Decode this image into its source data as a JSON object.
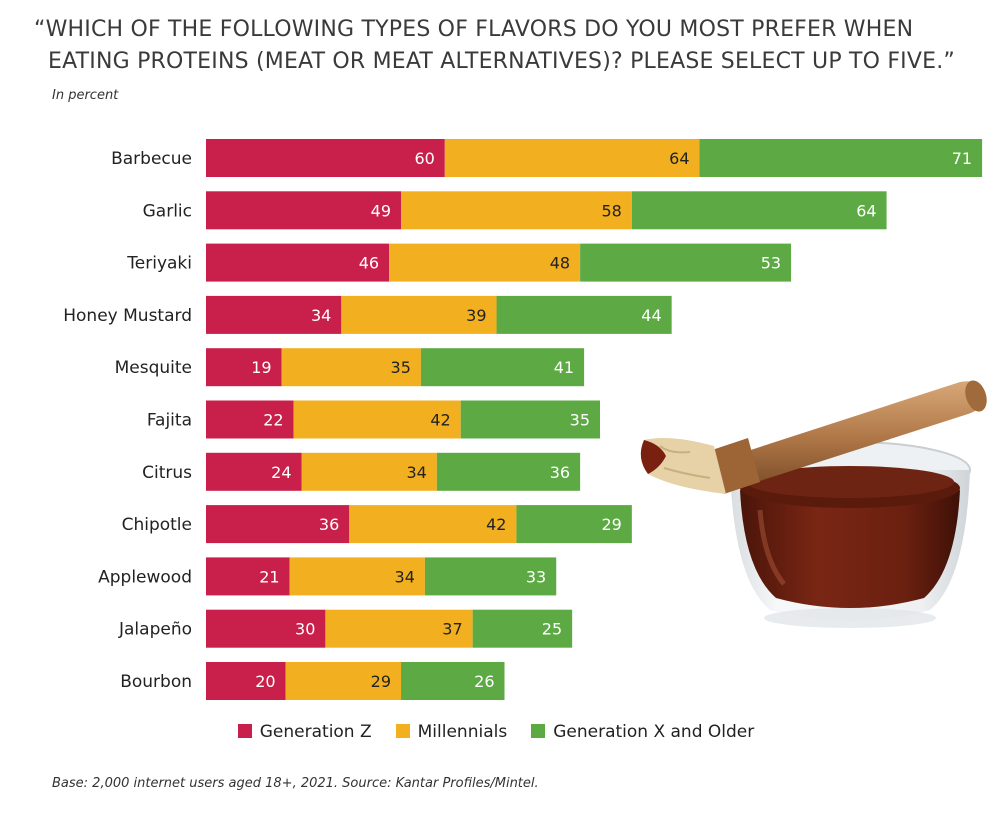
{
  "title_line1": "“WHICH OF THE FOLLOWING TYPES OF FLAVORS DO YOU MOST PREFER WHEN",
  "title_line2": "EATING PROTEINS (MEAT OR MEAT ALTERNATIVES)? PLEASE SELECT UP TO FIVE.”",
  "subtitle": "In percent",
  "footer": "Base: 2,000 internet users aged 18+, 2021. Source: Kantar Profiles/Mintel.",
  "colors": {
    "genz": "#c8204b",
    "millennials": "#f2b021",
    "genx": "#5daa45"
  },
  "photo_icon": "bbq-sauce-brush-photo",
  "chart_data": {
    "type": "bar",
    "orientation": "horizontal",
    "stacked": true,
    "title": "“WHICH OF THE FOLLOWING TYPES OF FLAVORS DO YOU MOST PREFER WHEN EATING PROTEINS (MEAT OR MEAT ALTERNATIVES)? PLEASE SELECT UP TO FIVE.”",
    "subtitle": "In percent",
    "xlabel": "",
    "ylabel": "",
    "xlim": [
      0,
      195
    ],
    "grid": false,
    "legend_position": "bottom",
    "categories": [
      "Barbecue",
      "Garlic",
      "Teriyaki",
      "Honey Mustard",
      "Mesquite",
      "Fajita",
      "Citrus",
      "Chipotle",
      "Applewood",
      "Jalapeño",
      "Bourbon"
    ],
    "series": [
      {
        "name": "Generation Z",
        "color": "#c8204b",
        "values": [
          60,
          49,
          46,
          34,
          19,
          22,
          24,
          36,
          21,
          30,
          20
        ]
      },
      {
        "name": "Millennials",
        "color": "#f2b021",
        "values": [
          64,
          58,
          48,
          39,
          35,
          42,
          34,
          42,
          34,
          37,
          29
        ]
      },
      {
        "name": "Generation X and Older",
        "color": "#5daa45",
        "values": [
          71,
          64,
          53,
          44,
          41,
          35,
          36,
          29,
          33,
          25,
          26
        ]
      }
    ]
  }
}
